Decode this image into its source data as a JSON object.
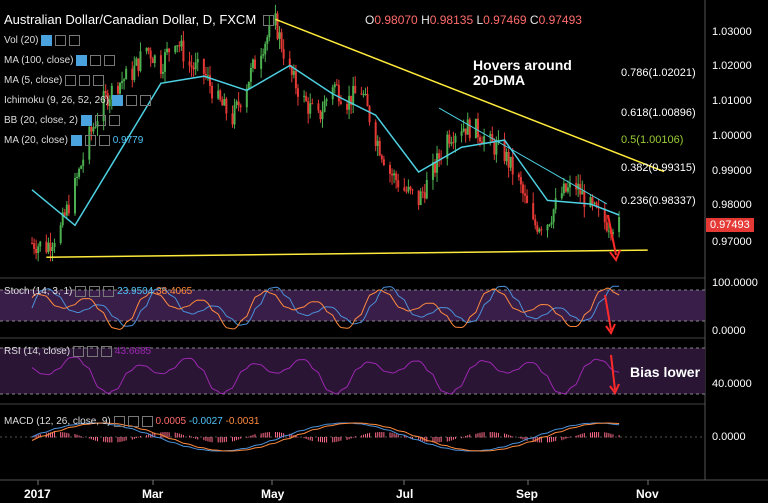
{
  "header": {
    "title": "Australian Dollar/Canadian Dollar, D, FXCM",
    "open_label": "O",
    "open": "0.98070",
    "high_label": "H",
    "high": "0.98135",
    "low_label": "L",
    "low": "0.97469",
    "close_label": "C",
    "close": "0.97493"
  },
  "indicators": {
    "vol": "Vol (20)",
    "ma100": "MA (100, close)",
    "ma5": "MA (5, close)",
    "ichimoku": "Ichimoku (9, 26, 52, 26)",
    "bb": "BB (20, close, 2)",
    "ma20": "MA (20, close)",
    "ma20_value": "0.9779"
  },
  "annotations": {
    "hovers": "Hovers around 20-DMA",
    "bias": "Bias lower"
  },
  "fib_levels": [
    {
      "label": "0.786(1.02021)",
      "value": 1.02021
    },
    {
      "label": "0.618(1.00896)",
      "value": 1.00896
    },
    {
      "label": "0.5(1.00106)",
      "value": 1.00106
    },
    {
      "label": "0.382(0.99315)",
      "value": 0.99315
    },
    {
      "label": "0.236(0.98337)",
      "value": 0.98337
    }
  ],
  "price_tag": "0.97493",
  "stoch": {
    "label": "Stoch (14, 3, 1)",
    "k": "23.9504",
    "d": "38.4065",
    "axis": [
      "100.0000",
      "0.0000"
    ]
  },
  "rsi": {
    "label": "RSI (14, close)",
    "value": "43.6685",
    "axis": "40.0000"
  },
  "macd": {
    "label": "MACD (12, 26, close, 9)",
    "hist": "0.0005",
    "macd": "-0.0027",
    "signal": "-0.0031",
    "axis": "0.0000"
  },
  "x_labels": [
    "2017",
    "Mar",
    "May",
    "Jul",
    "Sep",
    "Nov"
  ],
  "y_labels": [
    "1.03000",
    "1.02000",
    "1.01000",
    "1.00000",
    "0.99000",
    "0.98000",
    "0.97000"
  ],
  "chart_data": {
    "type": "candlestick",
    "title": "Australian Dollar/Canadian Dollar, D, FXCM",
    "x": [
      "2017-01",
      "2017-02",
      "2017-03",
      "2017-04",
      "2017-05",
      "2017-06",
      "2017-07",
      "2017-08",
      "2017-09",
      "2017-10"
    ],
    "ylim": [
      0.965,
      1.035
    ],
    "close_series": [
      [
        "2017-01-02",
        0.97
      ],
      [
        "2017-01-09",
        0.969
      ],
      [
        "2017-01-16",
        0.974
      ],
      [
        "2017-01-23",
        0.986
      ],
      [
        "2017-01-30",
        1.0
      ],
      [
        "2017-02-06",
        1.01
      ],
      [
        "2017-02-13",
        1.015
      ],
      [
        "2017-02-20",
        1.018
      ],
      [
        "2017-02-27",
        1.025
      ],
      [
        "2017-03-06",
        1.02
      ],
      [
        "2017-03-13",
        1.028
      ],
      [
        "2017-03-20",
        1.02
      ],
      [
        "2017-03-27",
        1.018
      ],
      [
        "2017-04-03",
        1.01
      ],
      [
        "2017-04-10",
        1.005
      ],
      [
        "2017-04-17",
        1.015
      ],
      [
        "2017-04-24",
        1.025
      ],
      [
        "2017-05-01",
        1.032
      ],
      [
        "2017-05-08",
        1.018
      ],
      [
        "2017-05-15",
        1.01
      ],
      [
        "2017-05-22",
        1.005
      ],
      [
        "2017-05-29",
        1.015
      ],
      [
        "2017-06-05",
        1.01
      ],
      [
        "2017-06-12",
        1.013
      ],
      [
        "2017-06-19",
        1.0
      ],
      [
        "2017-06-26",
        0.99
      ],
      [
        "2017-07-03",
        0.985
      ],
      [
        "2017-07-10",
        0.982
      ],
      [
        "2017-07-17",
        0.99
      ],
      [
        "2017-07-24",
        1.0
      ],
      [
        "2017-07-31",
        1.003
      ],
      [
        "2017-08-07",
        1.002
      ],
      [
        "2017-08-14",
        0.998
      ],
      [
        "2017-08-21",
        0.995
      ],
      [
        "2017-08-28",
        0.987
      ],
      [
        "2017-09-04",
        0.975
      ],
      [
        "2017-09-11",
        0.976
      ],
      [
        "2017-09-18",
        0.984
      ],
      [
        "2017-09-25",
        0.986
      ],
      [
        "2017-10-02",
        0.98
      ],
      [
        "2017-10-09",
        0.976
      ],
      [
        "2017-10-16",
        0.9749
      ]
    ],
    "ma20_series": [
      [
        "2017-01-02",
        0.985
      ],
      [
        "2017-01-23",
        0.975
      ],
      [
        "2017-02-13",
        0.995
      ],
      [
        "2017-03-06",
        1.015
      ],
      [
        "2017-03-27",
        1.017
      ],
      [
        "2017-04-17",
        1.013
      ],
      [
        "2017-05-08",
        1.02
      ],
      [
        "2017-05-29",
        1.012
      ],
      [
        "2017-06-19",
        1.006
      ],
      [
        "2017-07-10",
        0.99
      ],
      [
        "2017-07-31",
        0.997
      ],
      [
        "2017-08-21",
        0.999
      ],
      [
        "2017-09-11",
        0.982
      ],
      [
        "2017-10-02",
        0.981
      ],
      [
        "2017-10-16",
        0.9779
      ]
    ],
    "trendlines": {
      "resistance": [
        [
          "2017-05-01",
          1.033
        ],
        [
          "2017-10-16",
          0.989
        ]
      ],
      "support": [
        [
          "2017-01-09",
          0.966
        ],
        [
          "2017-10-30",
          0.968
        ]
      ]
    },
    "colors": {
      "up": "#4caf50",
      "down": "#e53935",
      "ma20": "#4dd0e1",
      "trend": "#ffeb3b"
    }
  }
}
